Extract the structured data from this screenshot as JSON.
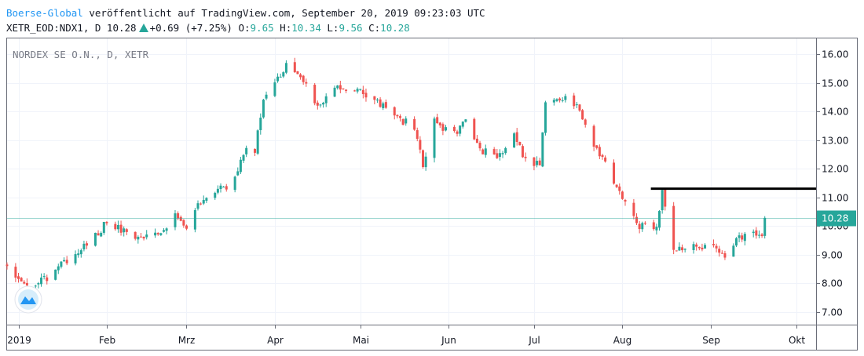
{
  "header": {
    "brand": "Boerse-Global",
    "published": " veröffentlicht auf TradingView.com, September 20, 2019 09:23:03 UTC",
    "symbol_line": "XETR_EOD:NDX1, D 10.28",
    "change": "+0.69 (+7.25%)",
    "o_label": "O:",
    "o_value": "9.65",
    "h_label": "H:",
    "h_value": "10.34",
    "l_label": "L:",
    "l_value": "9.56",
    "c_label": "C:",
    "c_value": "10.28"
  },
  "chart_data": {
    "type": "candlestick",
    "symbol_label": "NORDEX SE O.N., D, XETR",
    "last_value": "10.28",
    "ylim": [
      6.55,
      16.55
    ],
    "y_ticks": [
      "7.00",
      "8.00",
      "9.00",
      "10.00",
      "11.00",
      "12.00",
      "13.00",
      "14.00",
      "15.00",
      "16.00"
    ],
    "x_range": [
      "2018-12-28",
      "2019-10-08"
    ],
    "x_ticks": [
      {
        "date": "2019-01-01",
        "label": "2019"
      },
      {
        "date": "2019-02-01",
        "label": "Feb"
      },
      {
        "date": "2019-03-01",
        "label": "Mrz"
      },
      {
        "date": "2019-04-01",
        "label": "Apr"
      },
      {
        "date": "2019-05-01",
        "label": "Mai"
      },
      {
        "date": "2019-06-01",
        "label": "Jun"
      },
      {
        "date": "2019-07-01",
        "label": "Jul"
      },
      {
        "date": "2019-08-01",
        "label": "Aug"
      },
      {
        "date": "2019-09-01",
        "label": "Sep"
      },
      {
        "date": "2019-10-01",
        "label": "Okt"
      }
    ],
    "horizontal_line": {
      "y": 11.3,
      "from": "2019-08-11",
      "to": "2019-10-08",
      "color": "#000000"
    },
    "up_color": "#26a69a",
    "down_color": "#ef5350",
    "path": [
      [
        "2018-12-28",
        8.6
      ],
      [
        "2019-01-03",
        7.9
      ],
      [
        "2019-01-10",
        8.1
      ],
      [
        "2019-01-18",
        8.8
      ],
      [
        "2019-01-25",
        9.4
      ],
      [
        "2019-01-31",
        10.0
      ],
      [
        "2019-02-06",
        9.9
      ],
      [
        "2019-02-12",
        9.6
      ],
      [
        "2019-02-19",
        9.8
      ],
      [
        "2019-02-25",
        10.3
      ],
      [
        "2019-03-01",
        9.9
      ],
      [
        "2019-03-06",
        10.9
      ],
      [
        "2019-03-12",
        11.2
      ],
      [
        "2019-03-18",
        11.6
      ],
      [
        "2019-03-21",
        12.6
      ],
      [
        "2019-03-25",
        12.7
      ],
      [
        "2019-03-28",
        14.5
      ],
      [
        "2019-04-02",
        15.2
      ],
      [
        "2019-04-05",
        15.55
      ],
      [
        "2019-04-10",
        15.1
      ],
      [
        "2019-04-16",
        14.3
      ],
      [
        "2019-04-23",
        14.8
      ],
      [
        "2019-04-30",
        14.7
      ],
      [
        "2019-05-06",
        14.4
      ],
      [
        "2019-05-13",
        13.8
      ],
      [
        "2019-05-20",
        13.5
      ],
      [
        "2019-05-23",
        12.1
      ],
      [
        "2019-05-27",
        13.6
      ],
      [
        "2019-06-03",
        13.2
      ],
      [
        "2019-06-07",
        13.7
      ],
      [
        "2019-06-12",
        12.7
      ],
      [
        "2019-06-18",
        12.4
      ],
      [
        "2019-06-24",
        13.2
      ],
      [
        "2019-06-28",
        12.3
      ],
      [
        "2019-07-03",
        12.2
      ],
      [
        "2019-07-05",
        14.4
      ],
      [
        "2019-07-10",
        14.5
      ],
      [
        "2019-07-15",
        14.3
      ],
      [
        "2019-07-19",
        13.5
      ],
      [
        "2019-07-25",
        12.3
      ],
      [
        "2019-08-01",
        11.0
      ],
      [
        "2019-08-06",
        10.0
      ],
      [
        "2019-08-09",
        10.1
      ],
      [
        "2019-08-13",
        10.0
      ],
      [
        "2019-08-15",
        11.2
      ],
      [
        "2019-08-19",
        9.1
      ],
      [
        "2019-08-26",
        9.3
      ],
      [
        "2019-09-02",
        9.2
      ],
      [
        "2019-09-06",
        8.8
      ],
      [
        "2019-09-11",
        9.6
      ],
      [
        "2019-09-17",
        9.7
      ],
      [
        "2019-09-19",
        9.59
      ],
      [
        "2019-09-20",
        10.28
      ]
    ]
  }
}
